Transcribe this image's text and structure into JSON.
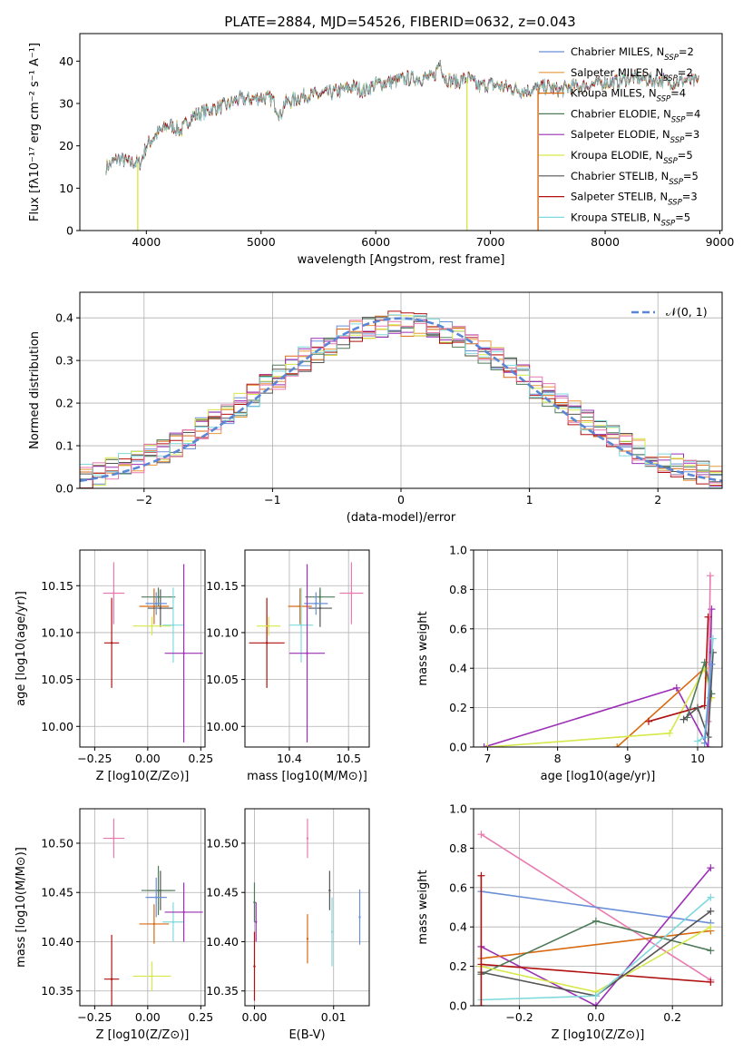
{
  "figure_title": "PLATE=2884, MJD=54526, FIBERID=0632, z=0.043",
  "colors": {
    "ChabMILES": "#6a8fd8",
    "SalpMILES": "#e8963a",
    "KrouMILES": "#d86a12",
    "ChabELODIE": "#4f7a5a",
    "SalpELODIE": "#9b2fb5",
    "KrouELODIE": "#d6e84a",
    "ChabSTELIB": "#555555",
    "SalpSTELIB": "#b01010",
    "KrouSTELIB": "#7fd9dc",
    "pink": "#e87ab0",
    "normal": "#5b86d6"
  },
  "chart_data": [
    {
      "type": "line",
      "id": "spectrum",
      "title": "PLATE=2884, MJD=54526, FIBERID=0632, z=0.043",
      "xlabel": "wavelength [Angstrom, rest frame]",
      "ylabel": "Flux [fλ10⁻¹⁷ erg cm⁻² s⁻¹ A⁻¹]",
      "xlim": [
        3420,
        9020
      ],
      "ylim": [
        0,
        46.5
      ],
      "xticks": [
        4000,
        5000,
        6000,
        7000,
        8000,
        9000
      ],
      "yticks": [
        0,
        10,
        20,
        30,
        40
      ],
      "legend_position": "top-right",
      "series": [
        {
          "name": "Chabrier MILES, N_SSP=2",
          "color_key": "ChabMILES"
        },
        {
          "name": "Salpeter MILES, N_SSP=2",
          "color_key": "SalpMILES"
        },
        {
          "name": "Kroupa MILES, N_SSP=4",
          "color_key": "KrouMILES"
        },
        {
          "name": "Chabrier ELODIE, N_SSP=4",
          "color_key": "ChabELODIE"
        },
        {
          "name": "Salpeter ELODIE, N_SSP=3",
          "color_key": "SalpELODIE"
        },
        {
          "name": "Kroupa ELODIE, N_SSP=5",
          "color_key": "KrouELODIE"
        },
        {
          "name": "Chabrier STELIB, N_SSP=5",
          "color_key": "ChabSTELIB"
        },
        {
          "name": "Salpeter STELIB, N_SSP=3",
          "color_key": "SalpSTELIB"
        },
        {
          "name": "Kroupa STELIB, N_SSP=5",
          "color_key": "KrouSTELIB"
        }
      ],
      "continuum": [
        [
          3650,
          15
        ],
        [
          3750,
          17
        ],
        [
          3850,
          16
        ],
        [
          3950,
          16
        ],
        [
          4000,
          20
        ],
        [
          4100,
          23
        ],
        [
          4200,
          25
        ],
        [
          4300,
          23.5
        ],
        [
          4400,
          27
        ],
        [
          4500,
          28
        ],
        [
          4600,
          29
        ],
        [
          4700,
          29.5
        ],
        [
          4800,
          31
        ],
        [
          4900,
          31
        ],
        [
          5000,
          31.5
        ],
        [
          5100,
          31
        ],
        [
          5170,
          27
        ],
        [
          5200,
          30
        ],
        [
          5300,
          31
        ],
        [
          5400,
          32
        ],
        [
          5500,
          32
        ],
        [
          5600,
          32.5
        ],
        [
          5700,
          33
        ],
        [
          5800,
          34
        ],
        [
          5900,
          33
        ],
        [
          6000,
          34.5
        ],
        [
          6100,
          35
        ],
        [
          6200,
          35.5
        ],
        [
          6300,
          36
        ],
        [
          6400,
          36
        ],
        [
          6500,
          36
        ],
        [
          6563,
          40
        ],
        [
          6600,
          36
        ],
        [
          6700,
          35
        ],
        [
          6800,
          36
        ],
        [
          6900,
          34
        ],
        [
          7000,
          34.5
        ],
        [
          7100,
          34
        ],
        [
          7200,
          33.5
        ],
        [
          7300,
          33
        ],
        [
          7400,
          33.5
        ],
        [
          7500,
          34
        ],
        [
          7600,
          33
        ],
        [
          7700,
          34
        ],
        [
          7800,
          34
        ],
        [
          7900,
          34.5
        ],
        [
          8000,
          35
        ],
        [
          8100,
          35
        ],
        [
          8200,
          36
        ],
        [
          8300,
          36
        ],
        [
          8400,
          35.5
        ],
        [
          8500,
          35.5
        ],
        [
          8600,
          35
        ],
        [
          8700,
          35.5
        ],
        [
          8820,
          35
        ]
      ],
      "dropouts": [
        {
          "x": 3925,
          "color_key": "KrouELODIE"
        },
        {
          "x": 6795,
          "color_key": "KrouELODIE"
        },
        {
          "x": 7415,
          "color_key": "KrouMILES"
        }
      ]
    },
    {
      "type": "line",
      "id": "residuals",
      "xlabel": "(data-model)/error",
      "ylabel": "Normed distribution",
      "xlim": [
        -2.5,
        2.5
      ],
      "ylim": [
        0,
        0.46
      ],
      "xticks": [
        -2,
        -1,
        0,
        1,
        2
      ],
      "yticks": [
        0,
        0.1,
        0.2,
        0.3,
        0.4
      ],
      "grid": true,
      "legend_position": "top-right",
      "legend": "𝒩(0, 1)",
      "normal_curve": {
        "mean": 0,
        "sigma": 1
      }
    },
    {
      "type": "scatter",
      "id": "age_vs_Z",
      "xlabel": "Z [log10(Z/Z⊙)]",
      "ylabel": "age  [log10(age/yr)]",
      "xlim": [
        -0.32,
        0.27
      ],
      "ylim": [
        9.978,
        10.188
      ],
      "xticks": [
        -0.25,
        0.0,
        0.25
      ],
      "yticks": [
        10.0,
        10.05,
        10.1,
        10.15
      ],
      "grid": true,
      "points": [
        {
          "x": -0.16,
          "y": 10.142,
          "xerr": 0.05,
          "yerr": 0.033,
          "color_key": "pink"
        },
        {
          "x": -0.17,
          "y": 10.089,
          "xerr": 0.035,
          "yerr": 0.048,
          "color_key": "SalpSTELIB"
        },
        {
          "x": 0.03,
          "y": 10.128,
          "xerr": 0.07,
          "yerr": 0.019,
          "color_key": "KrouMILES"
        },
        {
          "x": 0.06,
          "y": 10.126,
          "xerr": 0.06,
          "yerr": 0.02,
          "color_key": "ChabSTELIB"
        },
        {
          "x": 0.05,
          "y": 10.138,
          "xerr": 0.08,
          "yerr": 0.01,
          "color_key": "ChabELODIE"
        },
        {
          "x": 0.04,
          "y": 10.131,
          "xerr": 0.05,
          "yerr": 0.012,
          "color_key": "ChabMILES"
        },
        {
          "x": 0.02,
          "y": 10.107,
          "xerr": 0.09,
          "yerr": 0.01,
          "color_key": "KrouELODIE"
        },
        {
          "x": 0.12,
          "y": 10.108,
          "xerr": 0.05,
          "yerr": 0.04,
          "color_key": "KrouSTELIB"
        },
        {
          "x": 0.17,
          "y": 10.078,
          "xerr": 0.09,
          "yerr": 0.095,
          "color_key": "SalpELODIE"
        }
      ]
    },
    {
      "type": "scatter",
      "id": "age_vs_mass",
      "xlabel": "mass [log10(M/M⊙)]",
      "xlim": [
        10.325,
        10.535
      ],
      "ylim": [
        9.978,
        10.188
      ],
      "xticks": [
        10.4,
        10.5
      ],
      "yticks": [
        10.0,
        10.05,
        10.1,
        10.15
      ],
      "grid": true,
      "points": [
        {
          "x": 10.505,
          "y": 10.142,
          "xerr": 0.02,
          "yerr": 0.033,
          "color_key": "pink"
        },
        {
          "x": 10.362,
          "y": 10.089,
          "xerr": 0.03,
          "yerr": 0.048,
          "color_key": "SalpSTELIB"
        },
        {
          "x": 10.418,
          "y": 10.128,
          "xerr": 0.02,
          "yerr": 0.019,
          "color_key": "KrouMILES"
        },
        {
          "x": 10.452,
          "y": 10.126,
          "xerr": 0.02,
          "yerr": 0.02,
          "color_key": "ChabSTELIB"
        },
        {
          "x": 10.452,
          "y": 10.138,
          "xerr": 0.025,
          "yerr": 0.01,
          "color_key": "ChabELODIE"
        },
        {
          "x": 10.445,
          "y": 10.131,
          "xerr": 0.02,
          "yerr": 0.012,
          "color_key": "ChabMILES"
        },
        {
          "x": 10.365,
          "y": 10.107,
          "xerr": 0.02,
          "yerr": 0.01,
          "color_key": "KrouELODIE"
        },
        {
          "x": 10.42,
          "y": 10.108,
          "xerr": 0.02,
          "yerr": 0.04,
          "color_key": "KrouSTELIB"
        },
        {
          "x": 10.43,
          "y": 10.078,
          "xerr": 0.03,
          "yerr": 0.095,
          "color_key": "SalpELODIE"
        }
      ]
    },
    {
      "type": "line",
      "id": "weight_vs_age",
      "xlabel": "age  [log10(age/yr)]",
      "ylabel": "mass weight",
      "xlim": [
        6.8,
        10.35
      ],
      "ylim": [
        0,
        1.0
      ],
      "xticks": [
        7,
        8,
        9,
        10
      ],
      "yticks": [
        0,
        0.2,
        0.4,
        0.6,
        0.8,
        1.0
      ],
      "grid": true,
      "series": [
        {
          "color_key": "SalpELODIE",
          "x": [
            6.95,
            9.7,
            10.15,
            10.2
          ],
          "y": [
            0.0,
            0.3,
            0.0,
            0.7
          ]
        },
        {
          "color_key": "KrouMILES",
          "x": [
            8.85,
            10.1,
            10.15,
            10.18
          ],
          "y": [
            0.0,
            0.4,
            0.35,
            0.25
          ]
        },
        {
          "color_key": "KrouELODIE",
          "x": [
            7.0,
            9.6,
            10.1,
            10.2
          ],
          "y": [
            0.0,
            0.07,
            0.4,
            0.25
          ]
        },
        {
          "color_key": "SalpSTELIB",
          "x": [
            9.3,
            10.1,
            10.15
          ],
          "y": [
            0.13,
            0.21,
            0.66
          ]
        },
        {
          "color_key": "pink",
          "x": [
            10.15,
            10.18
          ],
          "y": [
            0.13,
            0.87
          ]
        },
        {
          "color_key": "ChabELODIE",
          "x": [
            9.85,
            10.1,
            10.2
          ],
          "y": [
            0.15,
            0.43,
            0.27
          ]
        },
        {
          "color_key": "ChabSTELIB",
          "x": [
            9.8,
            10.0,
            10.15,
            10.22
          ],
          "y": [
            0.14,
            0.2,
            0.05,
            0.48
          ]
        },
        {
          "color_key": "KrouSTELIB",
          "x": [
            10.0,
            10.1,
            10.22
          ],
          "y": [
            0.03,
            0.05,
            0.55
          ]
        },
        {
          "color_key": "ChabMILES",
          "x": [
            10.1,
            10.2
          ],
          "y": [
            0.02,
            0.42
          ]
        }
      ]
    },
    {
      "type": "scatter",
      "id": "mass_vs_Z",
      "xlabel": "Z [log10(Z/Z⊙)]",
      "ylabel": "mass [log10(M/M⊙)]",
      "xlim": [
        -0.32,
        0.27
      ],
      "ylim": [
        10.335,
        10.535
      ],
      "xticks": [
        -0.25,
        0.0,
        0.25
      ],
      "yticks": [
        10.35,
        10.4,
        10.45,
        10.5
      ],
      "grid": true,
      "points": [
        {
          "x": -0.16,
          "y": 10.505,
          "xerr": 0.05,
          "yerr": 0.02,
          "color_key": "pink"
        },
        {
          "x": -0.17,
          "y": 10.362,
          "xerr": 0.035,
          "yerr": 0.045,
          "color_key": "SalpSTELIB"
        },
        {
          "x": 0.03,
          "y": 10.418,
          "xerr": 0.07,
          "yerr": 0.02,
          "color_key": "KrouMILES"
        },
        {
          "x": 0.06,
          "y": 10.452,
          "xerr": 0.06,
          "yerr": 0.02,
          "color_key": "ChabSTELIB"
        },
        {
          "x": 0.05,
          "y": 10.452,
          "xerr": 0.08,
          "yerr": 0.025,
          "color_key": "ChabELODIE"
        },
        {
          "x": 0.04,
          "y": 10.445,
          "xerr": 0.05,
          "yerr": 0.02,
          "color_key": "ChabMILES"
        },
        {
          "x": 0.02,
          "y": 10.365,
          "xerr": 0.09,
          "yerr": 0.015,
          "color_key": "KrouELODIE"
        },
        {
          "x": 0.12,
          "y": 10.42,
          "xerr": 0.05,
          "yerr": 0.02,
          "color_key": "KrouSTELIB"
        },
        {
          "x": 0.17,
          "y": 10.43,
          "xerr": 0.09,
          "yerr": 0.03,
          "color_key": "SalpELODIE"
        }
      ]
    },
    {
      "type": "scatter",
      "id": "mass_vs_ebv",
      "xlabel": "E(B-V)",
      "xlim": [
        -0.0012,
        0.0145
      ],
      "ylim": [
        10.335,
        10.535
      ],
      "xticks": [
        0.0,
        0.01
      ],
      "yticks": [
        10.35,
        10.4,
        10.45,
        10.5
      ],
      "grid": true,
      "points": [
        {
          "x": 0.0,
          "y": 10.375,
          "xerr": 0,
          "yerr": 0.035,
          "color_key": "SalpSTELIB"
        },
        {
          "x": 0.0,
          "y": 10.44,
          "xerr": 0,
          "yerr": 0.02,
          "color_key": "ChabELODIE"
        },
        {
          "x": 0.0002,
          "y": 10.42,
          "xerr": 0,
          "yerr": 0.02,
          "color_key": "SalpELODIE"
        },
        {
          "x": 0.0067,
          "y": 10.505,
          "xerr": 0,
          "yerr": 0.02,
          "color_key": "pink"
        },
        {
          "x": 0.0067,
          "y": 10.403,
          "xerr": 0,
          "yerr": 0.025,
          "color_key": "KrouMILES"
        },
        {
          "x": 0.0095,
          "y": 10.452,
          "xerr": 0,
          "yerr": 0.02,
          "color_key": "ChabSTELIB"
        },
        {
          "x": 0.0098,
          "y": 10.41,
          "xerr": 0,
          "yerr": 0.035,
          "color_key": "KrouSTELIB"
        },
        {
          "x": 0.0133,
          "y": 10.425,
          "xerr": 0,
          "yerr": 0.028,
          "color_key": "ChabMILES"
        }
      ]
    },
    {
      "type": "line",
      "id": "weight_vs_Z",
      "xlabel": "Z [log10(Z/Z⊙)]",
      "ylabel": "mass weight",
      "xlim": [
        -0.32,
        0.33
      ],
      "ylim": [
        0,
        1.0
      ],
      "xticks": [
        -0.2,
        0.0,
        0.2
      ],
      "yticks": [
        0,
        0.2,
        0.4,
        0.6,
        0.8,
        1.0
      ],
      "grid": true,
      "series": [
        {
          "color_key": "pink",
          "x": [
            -0.3,
            0.3
          ],
          "y": [
            0.87,
            0.13
          ]
        },
        {
          "color_key": "ChabMILES",
          "x": [
            -0.3,
            0.3
          ],
          "y": [
            0.58,
            0.42
          ]
        },
        {
          "color_key": "SalpELODIE",
          "x": [
            -0.3,
            0.0,
            0.3
          ],
          "y": [
            0.3,
            0.0,
            0.7
          ]
        },
        {
          "color_key": "KrouMILES",
          "x": [
            -0.3,
            0.3
          ],
          "y": [
            0.24,
            0.38
          ]
        },
        {
          "color_key": "SalpSTELIB",
          "x": [
            -0.3,
            0.3
          ],
          "y": [
            0.21,
            0.12
          ]
        },
        {
          "color_key": "ChabELODIE",
          "x": [
            -0.3,
            0.0,
            0.3
          ],
          "y": [
            0.16,
            0.43,
            0.28
          ]
        },
        {
          "color_key": "KrouELODIE",
          "x": [
            -0.3,
            0.0,
            0.3
          ],
          "y": [
            0.2,
            0.07,
            0.4
          ]
        },
        {
          "color_key": "ChabSTELIB",
          "x": [
            -0.3,
            0.0,
            0.3
          ],
          "y": [
            0.17,
            0.05,
            0.48
          ]
        },
        {
          "color_key": "KrouSTELIB",
          "x": [
            -0.3,
            0.0,
            0.3
          ],
          "y": [
            0.03,
            0.05,
            0.55
          ]
        },
        {
          "color_key": "SalpSTELIB",
          "x": [
            -0.3,
            -0.3
          ],
          "y": [
            0.66,
            0.0
          ]
        }
      ]
    }
  ]
}
